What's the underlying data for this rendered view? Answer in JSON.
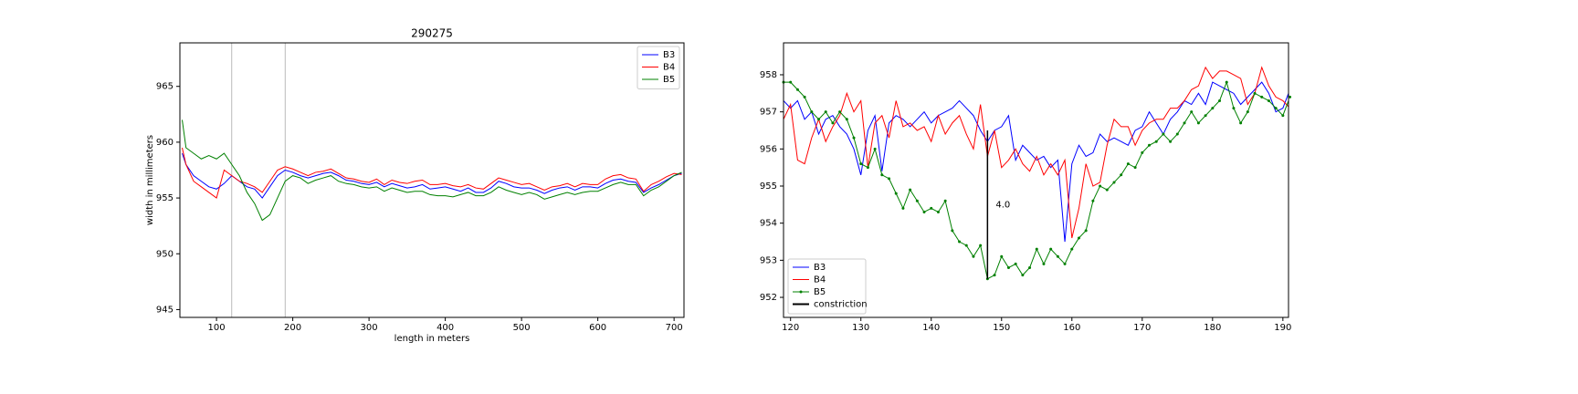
{
  "chart_data": [
    {
      "type": "line",
      "title": "290275",
      "x_label": "length in meters",
      "y_label": "width in millimeters",
      "xlim": [
        52,
        713
      ],
      "ylim": [
        944.3,
        968.9
      ],
      "xticks": [
        100,
        200,
        300,
        400,
        500,
        600,
        700
      ],
      "yticks": [
        945,
        950,
        955,
        960,
        965
      ],
      "vlines": [
        120,
        190
      ],
      "legend": "upper right",
      "x": [
        55,
        60,
        70,
        80,
        90,
        100,
        110,
        120,
        130,
        140,
        150,
        160,
        170,
        180,
        190,
        200,
        210,
        220,
        230,
        240,
        250,
        260,
        270,
        280,
        290,
        300,
        310,
        320,
        330,
        340,
        350,
        360,
        370,
        380,
        390,
        400,
        410,
        420,
        430,
        440,
        450,
        460,
        470,
        480,
        490,
        500,
        510,
        520,
        530,
        540,
        550,
        560,
        570,
        580,
        590,
        600,
        610,
        620,
        630,
        640,
        650,
        660,
        670,
        680,
        690,
        700,
        710
      ],
      "series": [
        {
          "name": "B3",
          "color": "#0000ff",
          "values": [
            959,
            958,
            957,
            956.5,
            956,
            955.8,
            956.3,
            957,
            956.5,
            956,
            955.8,
            955,
            956,
            957,
            957.5,
            957.3,
            957,
            956.8,
            957,
            957.2,
            957.3,
            957,
            956.6,
            956.5,
            956.3,
            956.2,
            956.4,
            956,
            956.3,
            956.1,
            955.9,
            956,
            956.2,
            955.8,
            955.9,
            956,
            955.8,
            955.6,
            955.9,
            955.5,
            955.5,
            955.9,
            956.5,
            956.3,
            956,
            955.9,
            955.9,
            955.7,
            955.4,
            955.7,
            955.9,
            956,
            955.7,
            956,
            956,
            955.9,
            956.3,
            956.6,
            956.7,
            956.5,
            956.4,
            955.5,
            955.9,
            956.2,
            956.6,
            957,
            957.2
          ]
        },
        {
          "name": "B4",
          "color": "#ff0000",
          "values": [
            959.5,
            958,
            956.5,
            956,
            955.5,
            955,
            957.5,
            957,
            956.5,
            956.3,
            956,
            955.5,
            956.5,
            957.5,
            957.8,
            957.6,
            957.3,
            957,
            957.3,
            957.4,
            957.6,
            957.2,
            956.8,
            956.7,
            956.5,
            956.4,
            956.7,
            956.2,
            956.6,
            956.4,
            956.3,
            956.5,
            956.6,
            956.2,
            956.2,
            956.3,
            956.1,
            956,
            956.2,
            955.9,
            955.8,
            956.3,
            956.8,
            956.6,
            956.4,
            956.2,
            956.3,
            956,
            955.7,
            956,
            956.1,
            956.3,
            956,
            956.3,
            956.2,
            956.2,
            956.7,
            957,
            957.1,
            956.8,
            956.7,
            955.6,
            956.2,
            956.5,
            956.9,
            957.2,
            957.1
          ]
        },
        {
          "name": "B5",
          "color": "#008000",
          "values": [
            962,
            959.5,
            959,
            958.5,
            958.8,
            958.5,
            959,
            958,
            957,
            955.5,
            954.5,
            953,
            953.5,
            955,
            956.5,
            957,
            956.8,
            956.3,
            956.6,
            956.8,
            957,
            956.5,
            956.3,
            956.2,
            956,
            955.9,
            956,
            955.6,
            955.9,
            955.7,
            955.5,
            955.6,
            955.6,
            955.3,
            955.2,
            955.2,
            955.1,
            955.3,
            955.5,
            955.2,
            955.2,
            955.5,
            956,
            955.7,
            955.5,
            955.3,
            955.5,
            955.3,
            954.9,
            955.1,
            955.3,
            955.5,
            955.3,
            955.5,
            955.6,
            955.6,
            955.9,
            956.2,
            956.4,
            956.2,
            956.2,
            955.2,
            955.7,
            956,
            956.5,
            957,
            957.3
          ]
        }
      ]
    },
    {
      "type": "line",
      "xlim": [
        119,
        190.8
      ],
      "ylim": [
        951.46,
        958.86
      ],
      "xticks": [
        120,
        130,
        140,
        150,
        160,
        170,
        180,
        190
      ],
      "yticks": [
        952,
        953,
        954,
        955,
        956,
        957,
        958
      ],
      "legend": "lower left",
      "x": [
        119,
        120,
        121,
        122,
        123,
        124,
        125,
        126,
        127,
        128,
        129,
        130,
        131,
        132,
        133,
        134,
        135,
        136,
        137,
        138,
        139,
        140,
        141,
        142,
        143,
        144,
        145,
        146,
        147,
        148,
        149,
        150,
        151,
        152,
        153,
        154,
        155,
        156,
        157,
        158,
        159,
        160,
        161,
        162,
        163,
        164,
        165,
        166,
        167,
        168,
        169,
        170,
        171,
        172,
        173,
        174,
        175,
        176,
        177,
        178,
        179,
        180,
        181,
        182,
        183,
        184,
        185,
        186,
        187,
        188,
        189,
        190,
        191
      ],
      "series": [
        {
          "name": "B3",
          "color": "#0000ff",
          "values": [
            957.3,
            957.1,
            957.3,
            956.8,
            957,
            956.4,
            956.8,
            956.9,
            956.6,
            956.4,
            956,
            955.3,
            956.5,
            956.9,
            955.4,
            956.7,
            956.9,
            956.8,
            956.6,
            956.8,
            957,
            956.7,
            956.9,
            957,
            957.1,
            957.3,
            957.1,
            956.9,
            956.5,
            956.2,
            956.5,
            956.6,
            956.9,
            955.7,
            956.1,
            955.9,
            955.7,
            955.8,
            955.5,
            955.7,
            953.5,
            955.6,
            956.1,
            955.8,
            955.9,
            956.4,
            956.2,
            956.3,
            956.2,
            956.1,
            956.5,
            956.6,
            957,
            956.7,
            956.4,
            956.8,
            957,
            957.3,
            957.2,
            957.5,
            957.2,
            957.8,
            957.7,
            957.6,
            957.5,
            957.2,
            957.4,
            957.6,
            957.8,
            957.5,
            957,
            957.1,
            957.6
          ]
        },
        {
          "name": "B4",
          "color": "#ff0000",
          "values": [
            956.8,
            957.2,
            955.7,
            955.6,
            956.3,
            956.8,
            956.2,
            956.6,
            956.9,
            957.5,
            957,
            957.3,
            955.5,
            956.7,
            956.9,
            956.3,
            957.3,
            956.6,
            956.7,
            956.5,
            956.6,
            956.2,
            956.9,
            956.4,
            956.7,
            956.9,
            956.4,
            956,
            957.2,
            955.8,
            956.5,
            955.5,
            955.7,
            956,
            955.6,
            955.4,
            955.8,
            955.3,
            955.6,
            955.3,
            955.7,
            953.6,
            954.4,
            955.6,
            955,
            955.1,
            956.1,
            956.8,
            956.6,
            956.6,
            956.1,
            956.5,
            956.7,
            956.8,
            956.8,
            957.1,
            957.1,
            957.3,
            957.6,
            957.7,
            958.2,
            957.9,
            958.1,
            958.1,
            958,
            957.9,
            957.2,
            957.5,
            958.2,
            957.7,
            957.4,
            957.3,
            957.1
          ]
        },
        {
          "name": "B5",
          "color": "#008000",
          "marker": true,
          "values": [
            957.8,
            957.8,
            957.6,
            957.4,
            957,
            956.8,
            957,
            956.7,
            957,
            956.8,
            956.3,
            955.6,
            955.5,
            956,
            955.3,
            955.2,
            954.8,
            954.4,
            954.9,
            954.6,
            954.3,
            954.4,
            954.3,
            954.6,
            953.8,
            953.5,
            953.4,
            953.1,
            953.4,
            952.5,
            952.6,
            953.1,
            952.8,
            952.9,
            952.6,
            952.8,
            953.3,
            952.9,
            953.3,
            953.1,
            952.9,
            953.3,
            953.6,
            953.8,
            954.6,
            955,
            954.9,
            955.1,
            955.3,
            955.6,
            955.5,
            955.9,
            956.1,
            956.2,
            956.4,
            956.2,
            956.4,
            956.7,
            957,
            956.7,
            956.9,
            957.1,
            957.3,
            957.8,
            957.1,
            956.7,
            957,
            957.5,
            957.4,
            957.3,
            957.1,
            956.9,
            957.4
          ]
        }
      ],
      "constriction": {
        "name": "constriction",
        "color": "#000000",
        "x": 148,
        "values": [
          952.5,
          956.5
        ],
        "label": "4.0"
      }
    }
  ]
}
